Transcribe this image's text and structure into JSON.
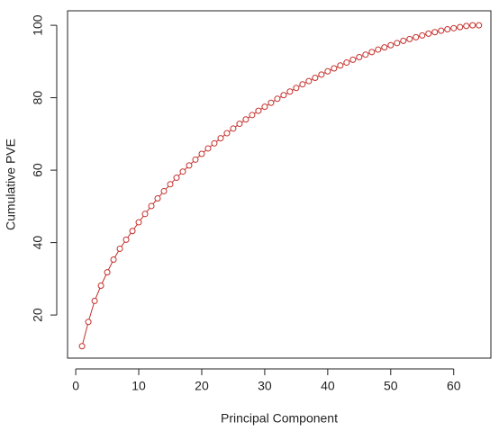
{
  "chart_data": {
    "type": "line",
    "x_label": "Principal Component",
    "y_label": "Cumulative PVE",
    "x": [
      1,
      2,
      3,
      4,
      5,
      6,
      7,
      8,
      9,
      10,
      11,
      12,
      13,
      14,
      15,
      16,
      17,
      18,
      19,
      20,
      21,
      22,
      23,
      24,
      25,
      26,
      27,
      28,
      29,
      30,
      31,
      32,
      33,
      34,
      35,
      36,
      37,
      38,
      39,
      40,
      41,
      42,
      43,
      44,
      45,
      46,
      47,
      48,
      49,
      50,
      51,
      52,
      53,
      54,
      55,
      56,
      57,
      58,
      59,
      60,
      61,
      62,
      63,
      64
    ],
    "values": [
      11.4,
      18.1,
      23.9,
      28.1,
      31.8,
      35.3,
      38.3,
      40.8,
      43.2,
      45.6,
      47.9,
      50.1,
      52.2,
      54.2,
      56.1,
      57.9,
      59.6,
      61.3,
      62.9,
      64.5,
      66.0,
      67.4,
      68.8,
      70.2,
      71.5,
      72.8,
      74.0,
      75.2,
      76.4,
      77.5,
      78.6,
      79.7,
      80.7,
      81.7,
      82.7,
      83.7,
      84.6,
      85.5,
      86.4,
      87.3,
      88.1,
      88.9,
      89.7,
      90.5,
      91.2,
      91.9,
      92.6,
      93.3,
      93.9,
      94.5,
      95.1,
      95.7,
      96.2,
      96.7,
      97.2,
      97.7,
      98.1,
      98.5,
      98.9,
      99.2,
      99.5,
      99.8,
      100.0,
      100.0
    ],
    "color": "#c4302b",
    "marker": "open-circle",
    "xlim": [
      -1.3,
      65.9
    ],
    "ylim": [
      8.1,
      104
    ],
    "xticks": [
      0,
      10,
      20,
      30,
      40,
      50,
      60
    ],
    "yticks": [
      20,
      40,
      60,
      80,
      100
    ],
    "grid": false
  }
}
